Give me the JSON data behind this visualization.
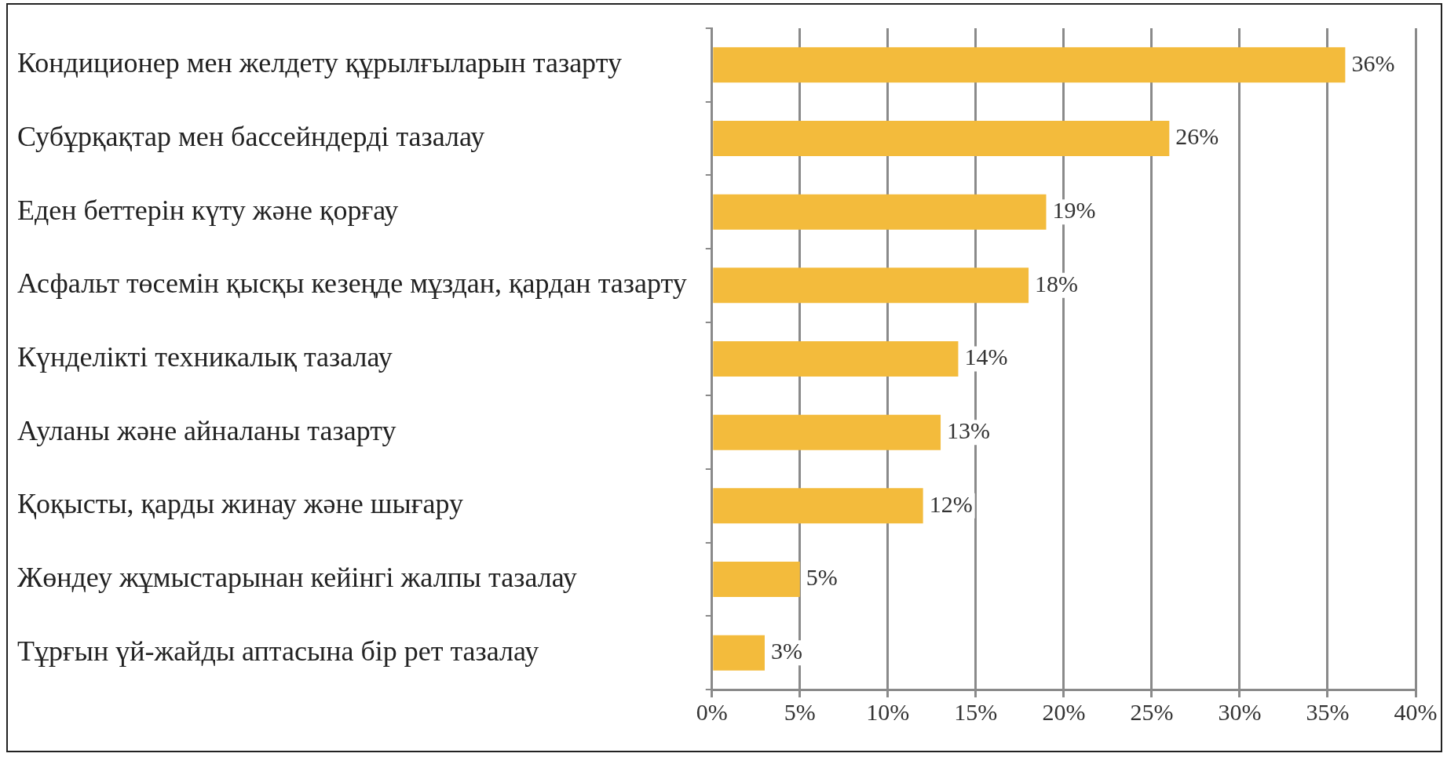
{
  "chart_data": {
    "type": "bar",
    "orientation": "horizontal",
    "categories": [
      "Кондиционер мен желдету құрылғыларын тазарту",
      "Субұрқақтар мен бассейндерді тазалау",
      "Еден беттерін күту және қорғау",
      "Асфальт төсемін қысқы кезеңде мұздан, қардан тазарту",
      "Күнделікті техникалық тазалау",
      "Ауланы және айналаны тазарту",
      "Қоқысты, қарды жинау және шығару",
      "Жөндеу жұмыстарынан кейінгі жалпы тазалау",
      "Тұрғын үй-жайды аптасына бір рет тазалау"
    ],
    "values": [
      36,
      26,
      19,
      18,
      14,
      13,
      12,
      5,
      3
    ],
    "value_labels": [
      "36%",
      "26%",
      "19%",
      "18%",
      "14%",
      "13%",
      "12%",
      "5%",
      "3%"
    ],
    "color": "#f3bb3c",
    "xlim": [
      0,
      40
    ],
    "xticks": [
      {
        "value": 0,
        "label": "0%"
      },
      {
        "value": 5,
        "label": "5%"
      },
      {
        "value": 10,
        "label": "10%"
      },
      {
        "value": 15,
        "label": "15%"
      },
      {
        "value": 20,
        "label": "20%"
      },
      {
        "value": 25,
        "label": "25%"
      },
      {
        "value": 30,
        "label": "30%"
      },
      {
        "value": 35,
        "label": "35%"
      },
      {
        "value": 40,
        "label": "40%"
      }
    ],
    "grid": "x",
    "legend": false
  }
}
